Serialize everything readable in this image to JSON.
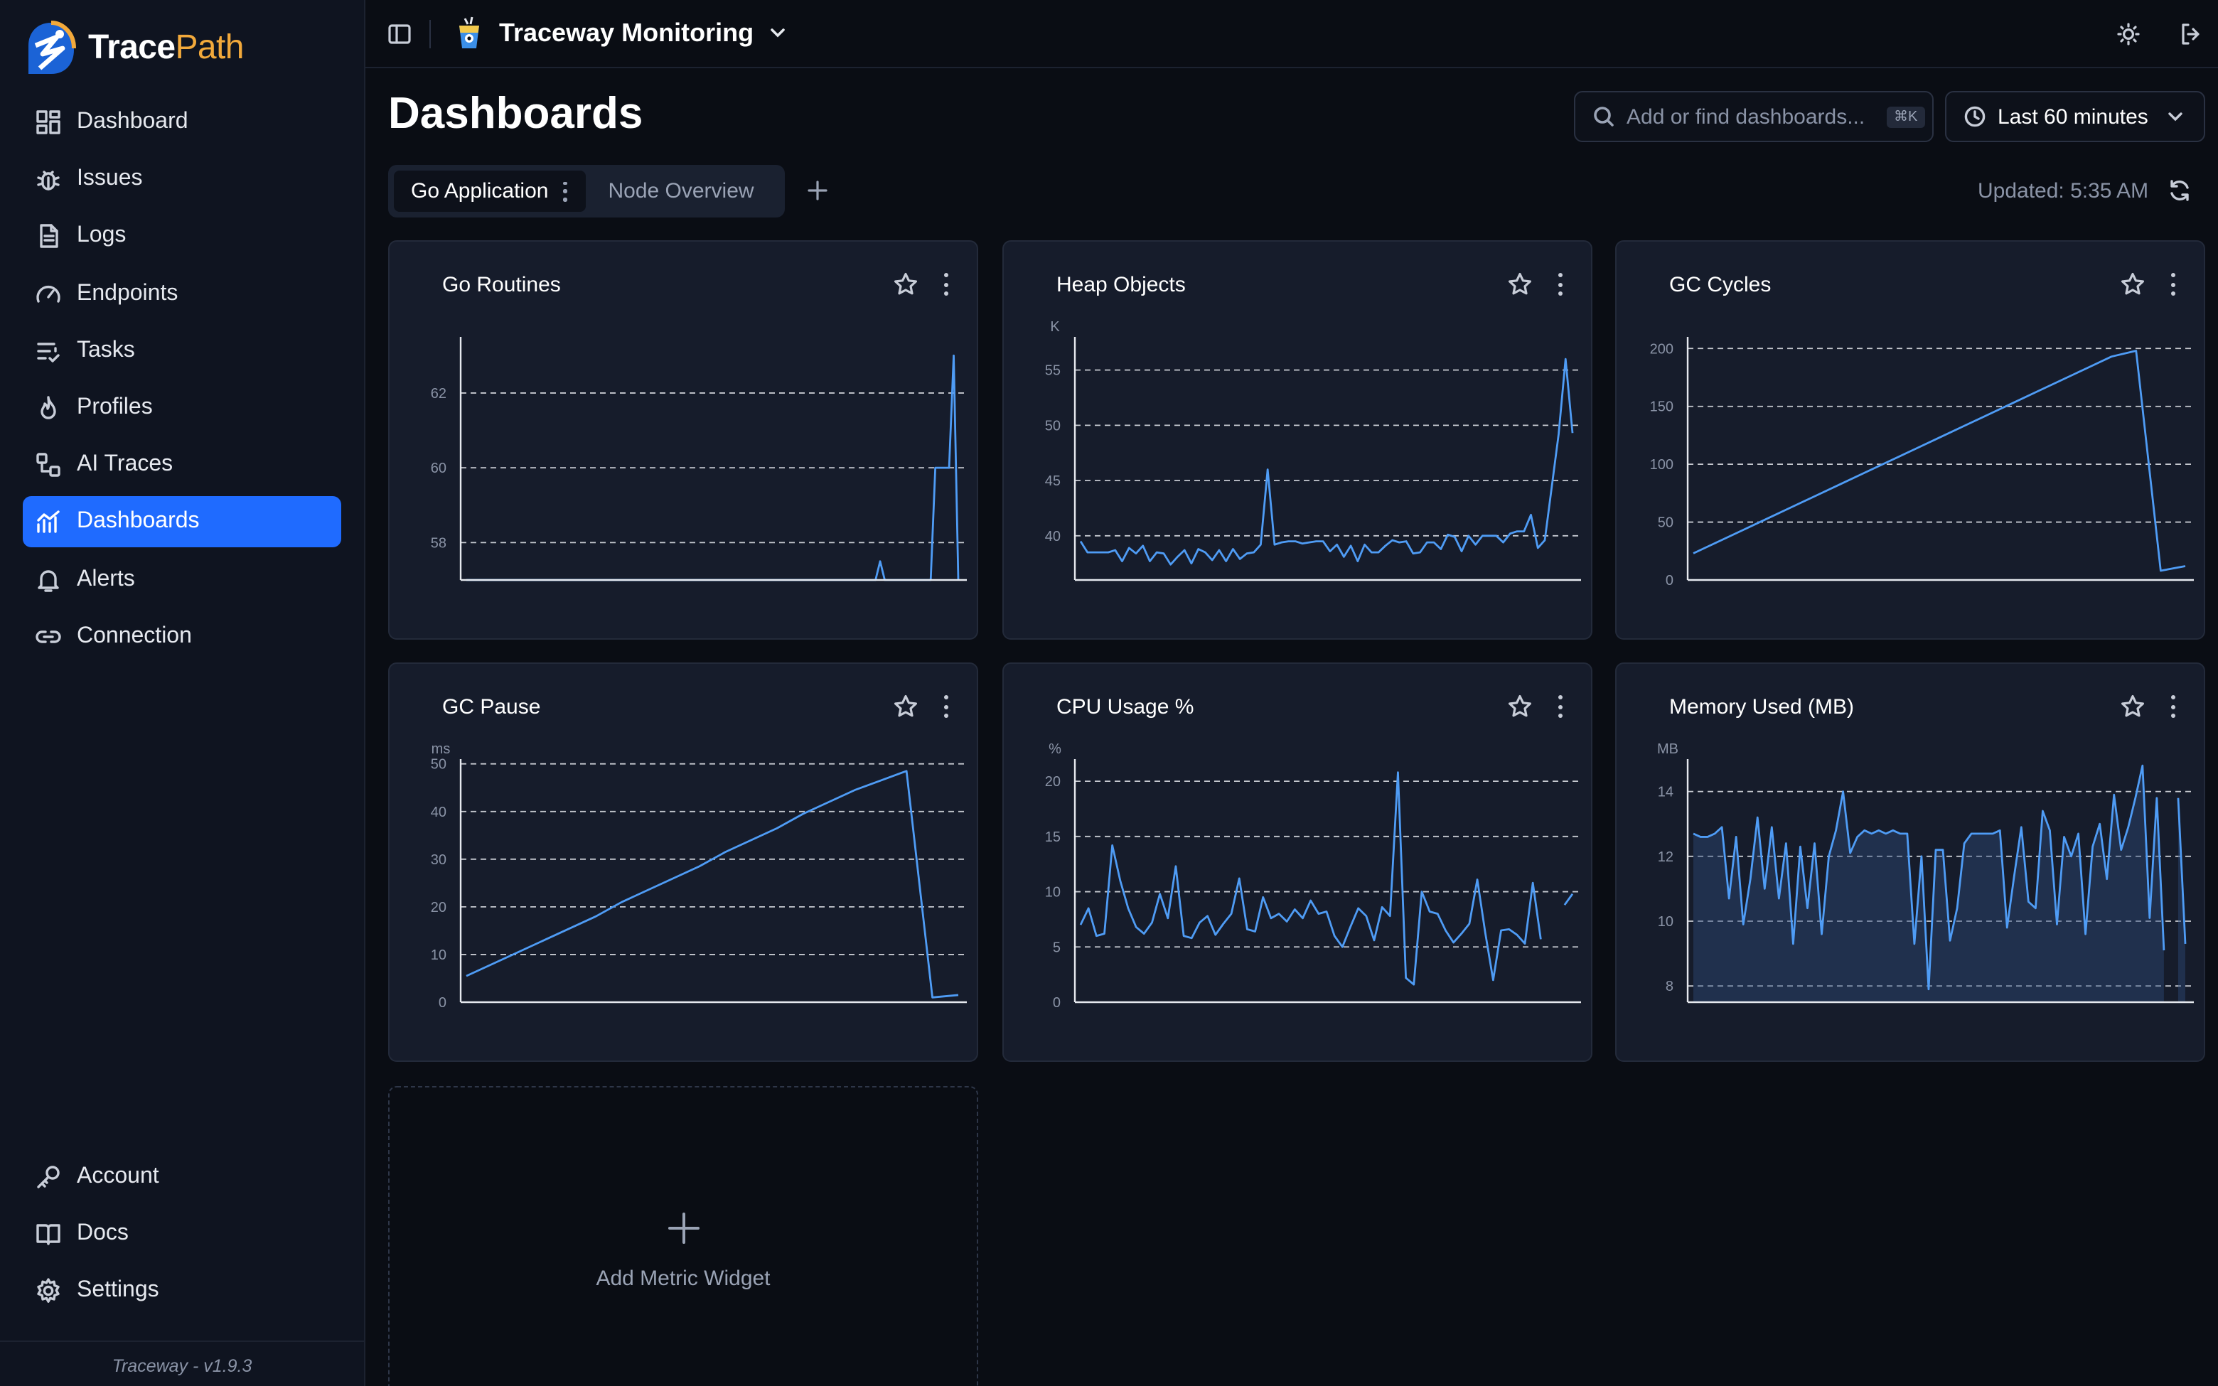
{
  "brand": {
    "part1": "Trace",
    "part2": "Path"
  },
  "sidebar": {
    "items": [
      {
        "label": "Dashboard",
        "icon": "grid-icon"
      },
      {
        "label": "Issues",
        "icon": "bug-icon"
      },
      {
        "label": "Logs",
        "icon": "file-text-icon"
      },
      {
        "label": "Endpoints",
        "icon": "gauge-icon"
      },
      {
        "label": "Tasks",
        "icon": "list-check-icon"
      },
      {
        "label": "Profiles",
        "icon": "flame-icon"
      },
      {
        "label": "AI Traces",
        "icon": "trace-icon"
      },
      {
        "label": "Dashboards",
        "icon": "chart-icon",
        "active": true
      },
      {
        "label": "Alerts",
        "icon": "bell-icon"
      },
      {
        "label": "Connection",
        "icon": "link-icon"
      }
    ],
    "bottom_items": [
      {
        "label": "Account",
        "icon": "key-icon"
      },
      {
        "label": "Docs",
        "icon": "book-icon"
      },
      {
        "label": "Settings",
        "icon": "gear-icon"
      }
    ],
    "footer": "Traceway - v1.9.3"
  },
  "topbar": {
    "project_name": "Traceway Monitoring"
  },
  "main": {
    "title": "Dashboards",
    "search": {
      "placeholder": "Add or find dashboards...",
      "shortcut": "⌘K"
    },
    "time_range": "Last 60 minutes",
    "tabs": [
      {
        "label": "Go Application",
        "active": true
      },
      {
        "label": "Node Overview",
        "active": false
      }
    ],
    "updated": "Updated: 5:35 AM",
    "add_widget_label": "Add Metric Widget"
  },
  "colors": {
    "accent": "#1f6bff",
    "line": "#4f9cf5",
    "brand_orange": "#f2a93b"
  },
  "chart_data": [
    {
      "type": "line",
      "title": "Go Routines",
      "unit": "",
      "ylim": [
        57,
        63.5
      ],
      "yticks": [
        58,
        60,
        62
      ],
      "values": [
        57,
        57,
        57,
        57,
        57,
        57,
        57,
        57,
        57,
        57,
        57,
        57,
        57,
        57,
        57,
        57,
        57,
        57,
        57,
        57,
        57,
        57,
        57,
        57,
        57,
        57,
        57,
        57,
        57,
        57,
        57,
        57,
        57,
        57,
        57,
        57,
        57,
        57,
        57,
        57,
        57,
        57,
        57,
        57,
        57,
        57,
        57,
        57,
        57,
        57,
        57,
        57,
        57,
        57,
        57,
        57,
        57,
        57,
        57,
        57,
        57,
        57,
        57,
        57,
        57,
        57,
        57,
        57,
        57,
        57,
        57,
        57,
        57,
        57,
        57,
        57,
        57,
        57,
        57,
        57,
        57,
        57,
        57,
        57,
        57,
        57,
        57,
        57,
        57,
        57,
        57.5,
        57,
        57,
        57,
        57,
        57,
        57,
        57,
        57,
        57,
        57,
        57,
        60,
        60,
        60,
        60,
        63,
        57
      ]
    },
    {
      "type": "line",
      "title": "Heap Objects",
      "unit": "K",
      "ylim": [
        36,
        58
      ],
      "yticks": [
        40,
        45,
        50,
        55
      ],
      "values": [
        39.5,
        38.5,
        38.5,
        38.5,
        38.5,
        38.7,
        37.7,
        38.9,
        38.4,
        39.1,
        37.7,
        38.5,
        38.4,
        37.4,
        38.1,
        38.7,
        37.5,
        38.8,
        38.5,
        37.8,
        38.7,
        37.7,
        38.8,
        37.9,
        38.4,
        38.5,
        39.2,
        46,
        39.2,
        39.4,
        39.5,
        39.5,
        39.3,
        39.4,
        39.5,
        39.5,
        38.6,
        39.2,
        38.1,
        39.1,
        37.7,
        39.2,
        38.5,
        38.5,
        39.1,
        39.6,
        39.4,
        39.5,
        38.4,
        38.5,
        39.4,
        39.4,
        38.8,
        40.1,
        39.9,
        38.6,
        40,
        39.2,
        40,
        40,
        40,
        39.4,
        40.2,
        40.4,
        40.4,
        41.9,
        38.9,
        39.6,
        44.4,
        49.2,
        56,
        49.3
      ]
    },
    {
      "type": "line",
      "title": "GC Cycles",
      "unit": "",
      "ylim": [
        0,
        210
      ],
      "yticks": [
        0,
        50,
        100,
        150,
        200
      ],
      "values": [
        23,
        33,
        43,
        53,
        63,
        73,
        83,
        93,
        103,
        113,
        123,
        133,
        143,
        153,
        163,
        173,
        183,
        193,
        198,
        8,
        12
      ]
    },
    {
      "type": "line",
      "title": "GC Pause",
      "unit": "ms",
      "ylim": [
        0,
        51
      ],
      "yticks": [
        0,
        10,
        20,
        30,
        40,
        50
      ],
      "values": [
        5.5,
        8,
        10.5,
        13,
        15.5,
        18,
        21,
        23.5,
        26,
        28.5,
        31.5,
        34,
        36.5,
        39.5,
        42,
        44.5,
        46.5,
        48.5,
        1,
        1.5
      ]
    },
    {
      "type": "line",
      "title": "CPU Usage %",
      "unit": "%",
      "ylim": [
        0,
        22
      ],
      "yticks": [
        0,
        5,
        10,
        15,
        20
      ],
      "values": [
        7,
        8.5,
        6,
        6.2,
        14.2,
        11,
        8.5,
        6.8,
        6.2,
        7.2,
        9.8,
        7.6,
        12.3,
        6,
        5.8,
        7.2,
        7.8,
        6.1,
        7.1,
        8,
        11.2,
        6.6,
        6.4,
        9.5,
        7.6,
        8,
        7.3,
        8.4,
        7.6,
        9.2,
        8,
        8.2,
        6,
        5,
        6.8,
        8.5,
        7.8,
        5.6,
        8.6,
        7.8,
        20.8,
        2.2,
        1.6,
        10,
        8.2,
        8,
        6.5,
        5.4,
        6.2,
        7.1,
        11.1,
        6.3,
        2,
        6.5,
        6.6,
        6.1,
        5.3,
        10.8,
        5.7,
        null,
        null,
        8.8,
        9.8
      ]
    },
    {
      "type": "area",
      "title": "Memory Used (MB)",
      "unit": "MB",
      "ylim": [
        7.5,
        15
      ],
      "yticks": [
        8,
        10,
        12,
        14
      ],
      "values": [
        12.7,
        12.6,
        12.6,
        12.7,
        12.9,
        10.7,
        12.6,
        9.9,
        11.3,
        13.2,
        11,
        12.9,
        10.7,
        12.4,
        9.3,
        12.3,
        10.4,
        12.4,
        9.6,
        12,
        12.8,
        14,
        12.1,
        12.6,
        12.8,
        12.7,
        12.8,
        12.7,
        12.8,
        12.7,
        12.7,
        9.3,
        12,
        7.9,
        12.2,
        12.2,
        9.4,
        10.4,
        12.4,
        12.7,
        12.7,
        12.7,
        12.7,
        12.8,
        9.8,
        11.4,
        12.9,
        10.6,
        10.4,
        13.4,
        12.8,
        9.9,
        12.6,
        12,
        12.7,
        9.6,
        12.3,
        13,
        11.3,
        13.9,
        12.2,
        12.9,
        13.8,
        14.8,
        10.1,
        13.8,
        9.1,
        null,
        13.8,
        9.3
      ]
    }
  ]
}
